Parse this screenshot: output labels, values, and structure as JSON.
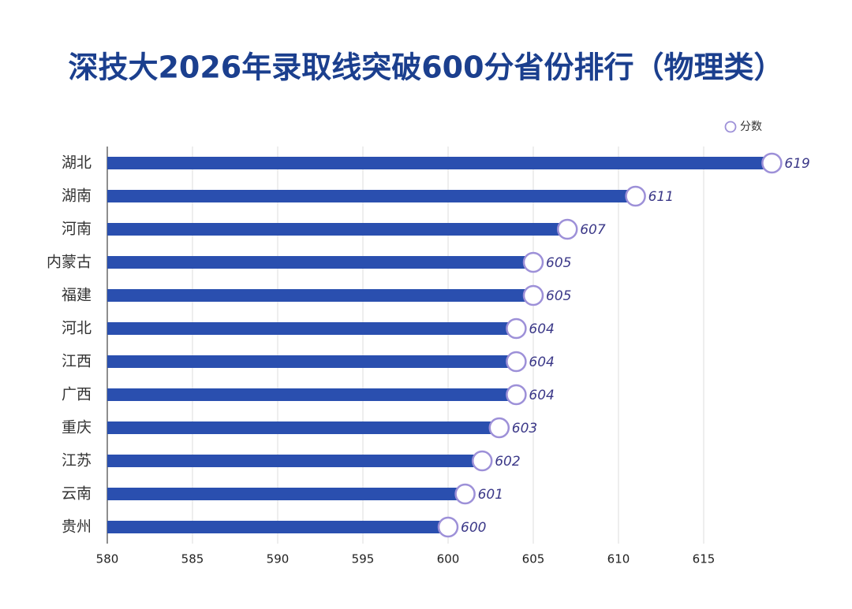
{
  "chart_data": {
    "type": "bar",
    "orientation": "horizontal",
    "title": "深技大2026年录取线突破600分省份排行（物理类）",
    "categories": [
      "湖北",
      "湖南",
      "河南",
      "内蒙古",
      "福建",
      "河北",
      "江西",
      "广西",
      "重庆",
      "江苏",
      "云南",
      "贵州"
    ],
    "series": [
      {
        "name": "分数",
        "color": "#2a4faf",
        "values": [
          619,
          611,
          607,
          605,
          605,
          604,
          604,
          604,
          603,
          602,
          601,
          600
        ]
      }
    ],
    "xlim": [
      580,
      620
    ],
    "xticks": [
      580,
      585,
      590,
      595,
      600,
      605,
      610,
      615
    ],
    "grid": true,
    "legend": "top-right"
  }
}
